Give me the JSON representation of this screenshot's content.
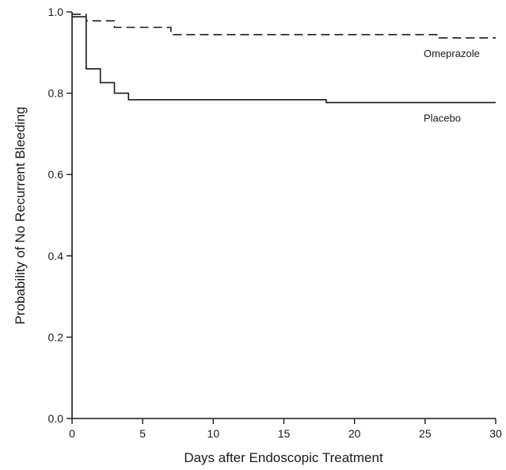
{
  "chart_data": {
    "type": "line",
    "xlabel": "Days after Endoscopic Treatment",
    "ylabel": "Probability of No Recurrent Bleeding",
    "xlim": [
      0,
      30
    ],
    "ylim": [
      0,
      1.0
    ],
    "x_ticks": [
      "0",
      "5",
      "10",
      "15",
      "20",
      "25",
      "30"
    ],
    "y_ticks": [
      "0.0",
      "0.2",
      "0.4",
      "0.6",
      "0.8",
      "1.0"
    ],
    "grid": false,
    "legend": "none (series labeled directly on lines)",
    "series": [
      {
        "name": "Omeprazole",
        "style": "dashed",
        "step": true,
        "color": "#1a1a1a",
        "points": [
          [
            0,
            0.994
          ],
          [
            1,
            0.978
          ],
          [
            3,
            0.962
          ],
          [
            7,
            0.944
          ],
          [
            26,
            0.936
          ],
          [
            30,
            0.936
          ]
        ]
      },
      {
        "name": "Placebo",
        "style": "solid",
        "step": true,
        "color": "#1a1a1a",
        "points": [
          [
            0,
            0.988
          ],
          [
            1,
            0.86
          ],
          [
            2,
            0.826
          ],
          [
            3,
            0.8
          ],
          [
            4,
            0.784
          ],
          [
            18,
            0.777
          ],
          [
            30,
            0.777
          ]
        ]
      }
    ]
  }
}
